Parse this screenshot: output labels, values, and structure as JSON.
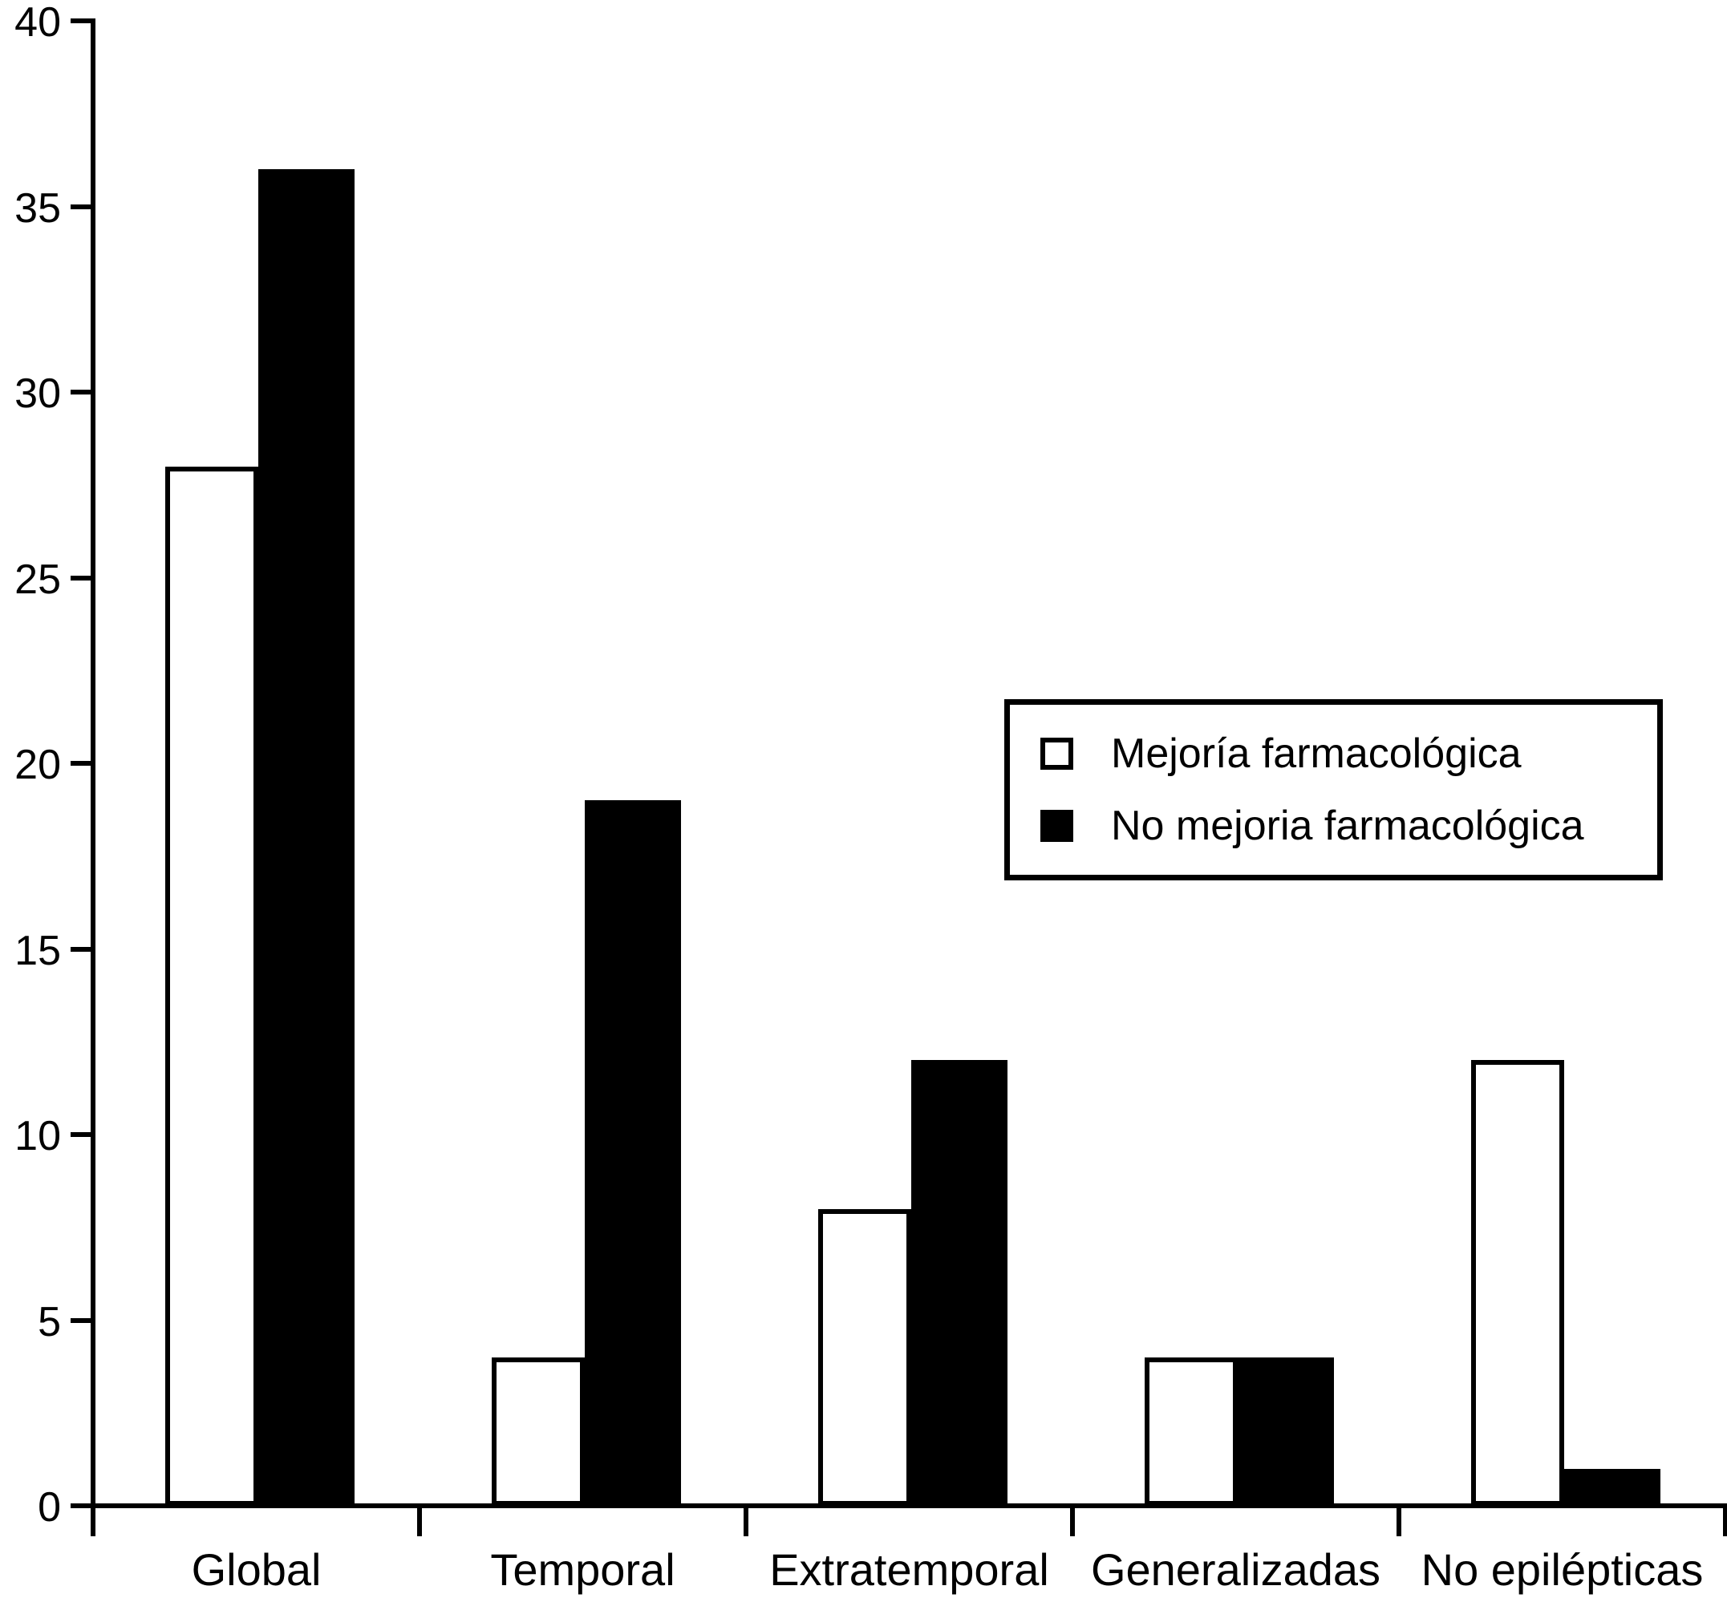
{
  "chart_data": {
    "type": "bar",
    "title": "",
    "xlabel": "",
    "ylabel": "",
    "categories": [
      "Global",
      "Temporal",
      "Extratemporal",
      "Generalizadas",
      "No epilépticas"
    ],
    "series": [
      {
        "name": "Mejoría farmacológica",
        "fill": "#ffffff",
        "values": [
          28,
          4,
          8,
          4,
          12
        ]
      },
      {
        "name": "No mejoria farmacológica",
        "fill": "#000000",
        "values": [
          36,
          19,
          12,
          4,
          1
        ]
      }
    ],
    "ylim": [
      0,
      40
    ],
    "yticks": [
      0,
      5,
      10,
      15,
      20,
      25,
      30,
      35,
      40
    ],
    "grid": false,
    "legend_position": "center-right",
    "axis_color": "#000000",
    "background_color": "#ffffff"
  }
}
